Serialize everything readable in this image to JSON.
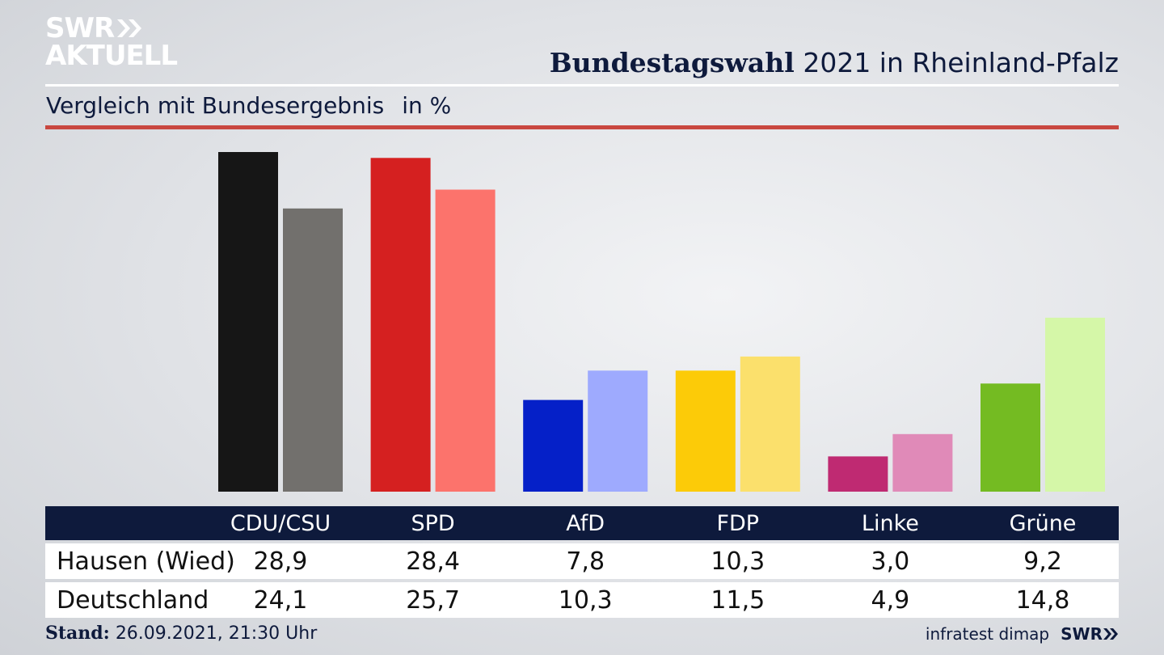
{
  "logo": {
    "line1": "SWR",
    "line2": "AKTUELL"
  },
  "header": {
    "title_bold": "Bundestagswahl",
    "title_rest": "2021 in Rheinland-Pfalz"
  },
  "subtitle": {
    "text": "Vergleich mit Bundesergebnis",
    "unit": "in %"
  },
  "colors": {
    "navy": "#0e1a3c",
    "accent_rule": "#c94740"
  },
  "chart_data": {
    "type": "bar",
    "categories": [
      "CDU/CSU",
      "SPD",
      "AfD",
      "FDP",
      "Linke",
      "Grüne"
    ],
    "series": [
      {
        "name": "Hausen (Wied)",
        "values": [
          28.9,
          28.4,
          7.8,
          10.3,
          3.0,
          9.2
        ],
        "colors": [
          "#161616",
          "#d52020",
          "#0520c8",
          "#fccb08",
          "#bf2a72",
          "#74bb22"
        ]
      },
      {
        "name": "Deutschland",
        "values": [
          24.1,
          25.7,
          10.3,
          11.5,
          4.9,
          14.8
        ],
        "colors": [
          "#72706d",
          "#fc736c",
          "#9eaafe",
          "#fbe06c",
          "#e08ab8",
          "#d5f7a8"
        ]
      }
    ],
    "ylim": [
      0,
      28.9
    ],
    "grid": false,
    "legend": "table-below"
  },
  "table": {
    "rows": [
      {
        "label": "Hausen (Wied)",
        "values": [
          "28,9",
          "28,4",
          "7,8",
          "10,3",
          "3,0",
          "9,2"
        ]
      },
      {
        "label": "Deutschland",
        "values": [
          "24,1",
          "25,7",
          "10,3",
          "11,5",
          "4,9",
          "14,8"
        ]
      }
    ]
  },
  "footer": {
    "stand_label": "Stand:",
    "stand_value": "26.09.2021, 21:30 Uhr",
    "source": "infratest dimap",
    "brand": "SWR"
  }
}
